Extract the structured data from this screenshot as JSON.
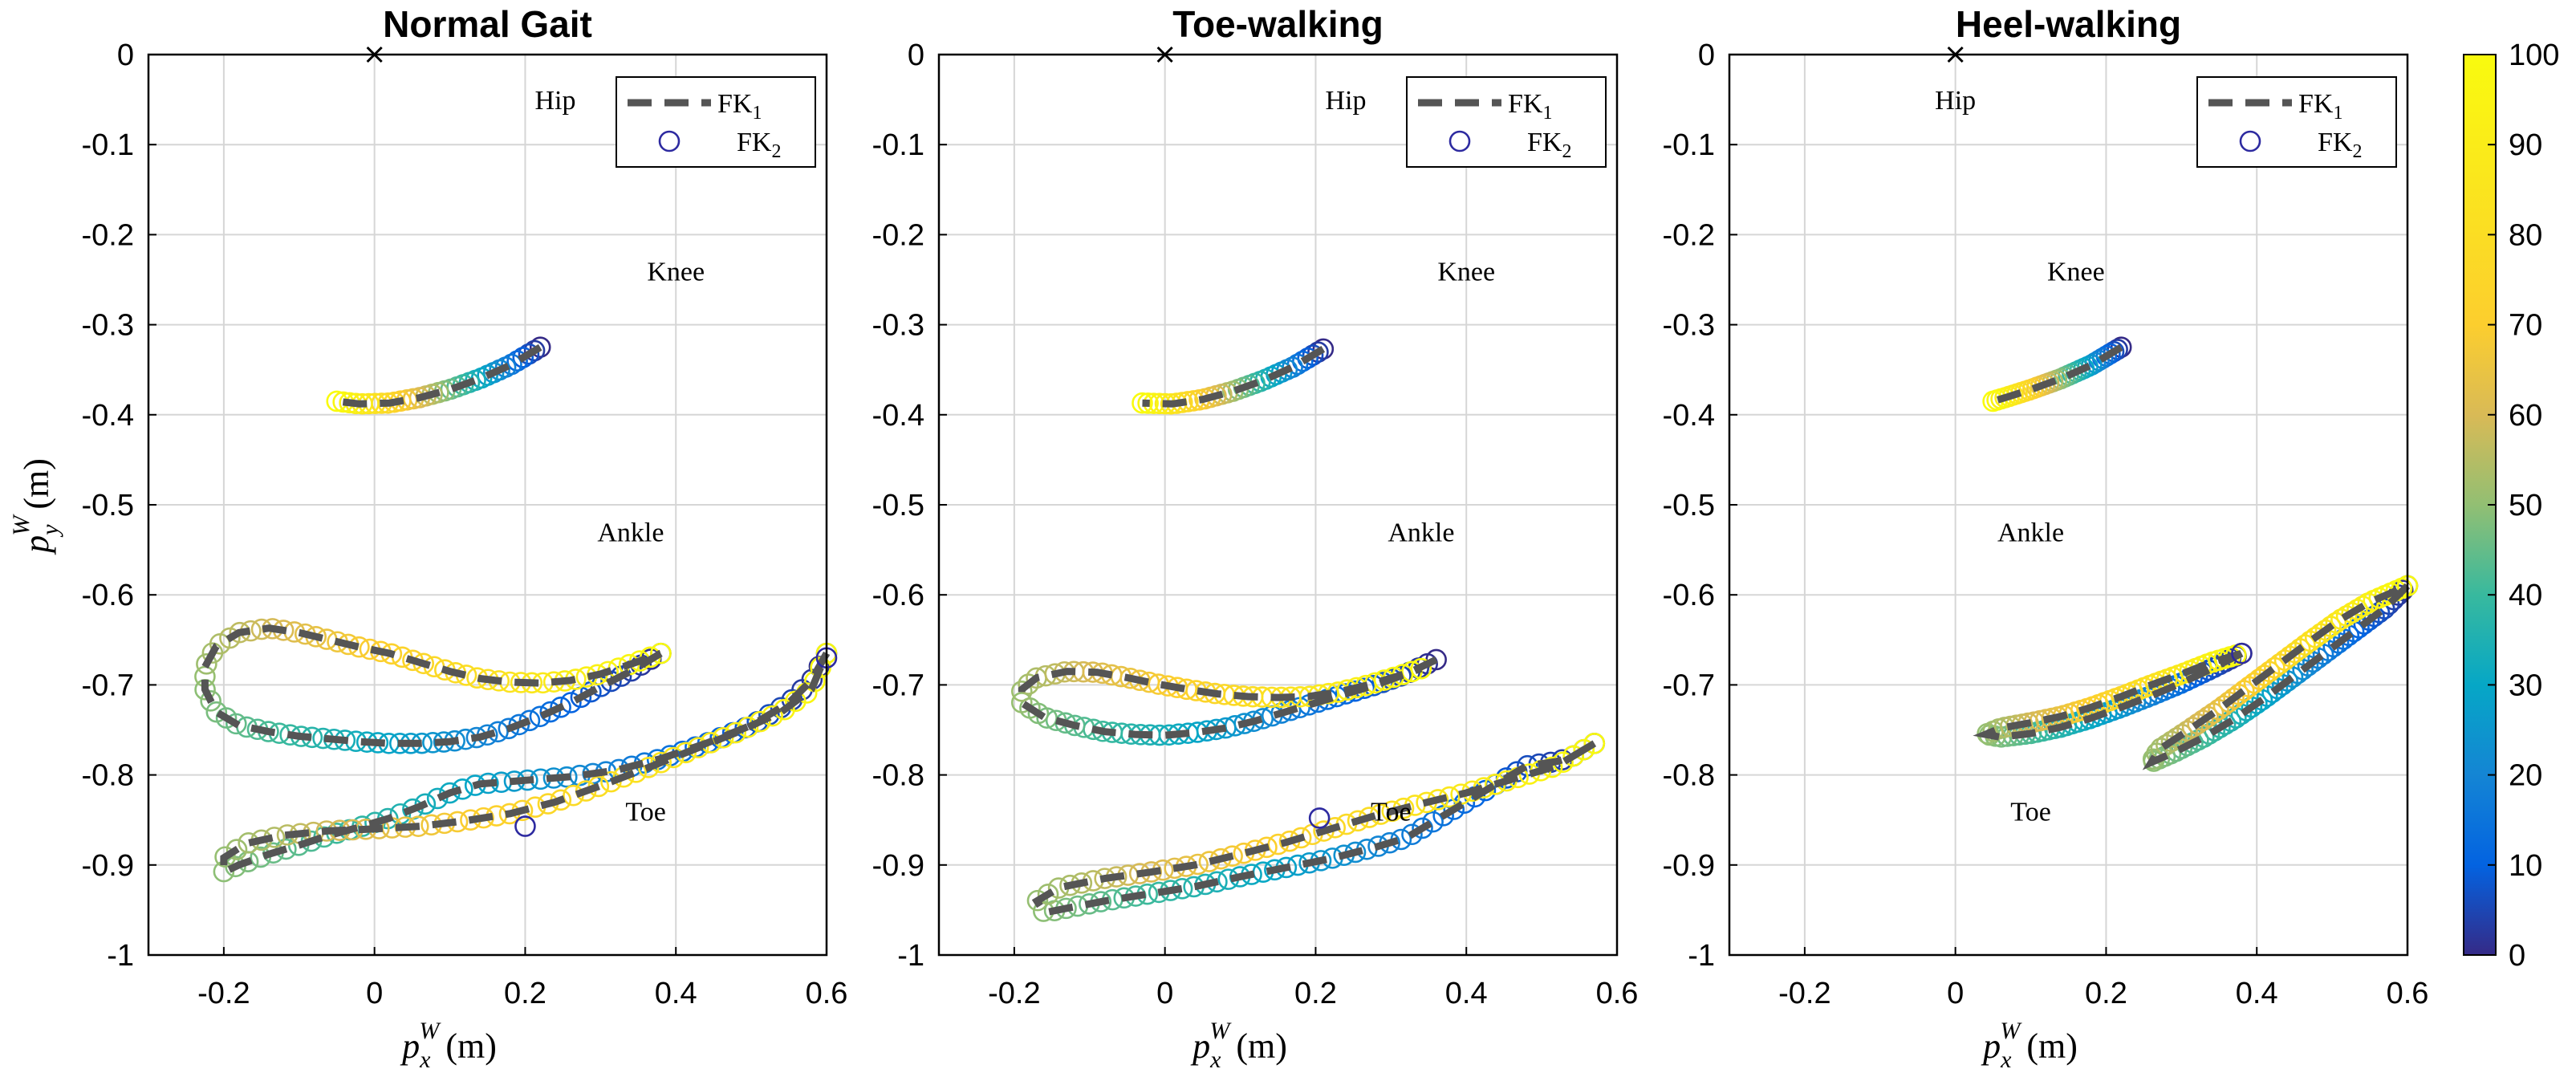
{
  "figure": {
    "xlabel": "p_x^W (m)",
    "xlabel_main": "p",
    "xlabel_sub": "x",
    "xlabel_sup": "W",
    "xlabel_unit": "(m)",
    "ylabel": "p_y^W (m)",
    "ylabel_main": "p",
    "ylabel_sub": "y",
    "ylabel_sup": "W",
    "ylabel_unit": "(m)"
  },
  "legend": {
    "fk1_main": "FK",
    "fk1_sub": "1",
    "fk2_main": "FK",
    "fk2_sub": "2"
  },
  "colorbar": {
    "min": 0,
    "max": 100,
    "ticks": [
      "0",
      "10",
      "20",
      "30",
      "40",
      "50",
      "60",
      "70",
      "80",
      "90",
      "100"
    ],
    "colormap": "parula"
  },
  "chart_data": [
    {
      "type": "line",
      "title": "Normal Gait",
      "xlim": [
        -0.3,
        0.6
      ],
      "ylim": [
        -1,
        0
      ],
      "xticks": [
        "-0.2",
        "0",
        "0.2",
        "0.4",
        "0.6"
      ],
      "yticks": [
        "0",
        "-0.1",
        "-0.2",
        "-0.3",
        "-0.4",
        "-0.5",
        "-0.6",
        "-0.7",
        "-0.8",
        "-0.9",
        "-1"
      ],
      "grid": true,
      "legend_position": "top-right",
      "series": [
        {
          "name": "FK1",
          "style": "dashed",
          "color": "#555555"
        },
        {
          "name": "FK2",
          "style": "circles",
          "color_by": "gait cycle %"
        }
      ],
      "joint_origin": {
        "x": 0,
        "y": 0
      },
      "annotations": [
        {
          "text": "Hip",
          "x": 0.24,
          "y": -0.05
        },
        {
          "text": "Knee",
          "x": 0.4,
          "y": -0.24
        },
        {
          "text": "Ankle",
          "x": 0.34,
          "y": -0.53
        },
        {
          "text": "Toe",
          "x": 0.36,
          "y": -0.84
        }
      ],
      "trajectories": {
        "knee": [
          [
            0.22,
            -0.325
          ],
          [
            0.18,
            -0.345
          ],
          [
            0.14,
            -0.36
          ],
          [
            0.1,
            -0.372
          ],
          [
            0.06,
            -0.381
          ],
          [
            0.02,
            -0.387
          ],
          [
            -0.02,
            -0.388
          ],
          [
            -0.05,
            -0.385
          ]
        ],
        "ankle": [
          [
            0.38,
            -0.665
          ],
          [
            0.34,
            -0.685
          ],
          [
            0.3,
            -0.702
          ],
          [
            0.26,
            -0.72
          ],
          [
            0.22,
            -0.735
          ],
          [
            0.18,
            -0.748
          ],
          [
            0.14,
            -0.758
          ],
          [
            0.1,
            -0.763
          ],
          [
            0.06,
            -0.765
          ],
          [
            0.02,
            -0.765
          ],
          [
            -0.02,
            -0.763
          ],
          [
            -0.06,
            -0.76
          ],
          [
            -0.1,
            -0.757
          ],
          [
            -0.14,
            -0.752
          ],
          [
            -0.18,
            -0.745
          ],
          [
            -0.21,
            -0.73
          ],
          [
            -0.225,
            -0.705
          ],
          [
            -0.225,
            -0.68
          ],
          [
            -0.21,
            -0.657
          ],
          [
            -0.18,
            -0.642
          ],
          [
            -0.14,
            -0.637
          ],
          [
            -0.1,
            -0.642
          ],
          [
            -0.06,
            -0.65
          ],
          [
            -0.02,
            -0.658
          ],
          [
            0.02,
            -0.665
          ],
          [
            0.06,
            -0.675
          ],
          [
            0.1,
            -0.685
          ],
          [
            0.14,
            -0.693
          ],
          [
            0.18,
            -0.697
          ],
          [
            0.22,
            -0.698
          ],
          [
            0.26,
            -0.695
          ],
          [
            0.3,
            -0.688
          ],
          [
            0.34,
            -0.677
          ],
          [
            0.38,
            -0.665
          ]
        ],
        "toe": [
          [
            0.6,
            -0.665
          ],
          [
            0.58,
            -0.695
          ],
          [
            0.55,
            -0.72
          ],
          [
            0.5,
            -0.745
          ],
          [
            0.44,
            -0.765
          ],
          [
            0.38,
            -0.782
          ],
          [
            0.32,
            -0.795
          ],
          [
            0.26,
            -0.802
          ],
          [
            0.2,
            -0.806
          ],
          [
            0.14,
            -0.81
          ],
          [
            0.1,
            -0.82
          ],
          [
            0.06,
            -0.835
          ],
          [
            0.02,
            -0.848
          ],
          [
            -0.02,
            -0.858
          ],
          [
            -0.06,
            -0.867
          ],
          [
            -0.1,
            -0.878
          ],
          [
            -0.14,
            -0.888
          ],
          [
            -0.18,
            -0.9
          ],
          [
            -0.2,
            -0.908
          ],
          [
            -0.2,
            -0.892
          ],
          [
            -0.17,
            -0.876
          ],
          [
            -0.12,
            -0.867
          ],
          [
            -0.06,
            -0.862
          ],
          [
            0,
            -0.86
          ],
          [
            0.06,
            -0.857
          ],
          [
            0.12,
            -0.851
          ],
          [
            0.18,
            -0.843
          ],
          [
            0.24,
            -0.83
          ],
          [
            0.3,
            -0.812
          ],
          [
            0.36,
            -0.793
          ],
          [
            0.42,
            -0.773
          ],
          [
            0.48,
            -0.753
          ],
          [
            0.54,
            -0.73
          ],
          [
            0.58,
            -0.705
          ],
          [
            0.6,
            -0.665
          ]
        ]
      },
      "outliers": [
        [
          0.2,
          -0.857
        ],
        [
          0.6,
          -0.67
        ]
      ]
    },
    {
      "type": "line",
      "title": "Toe-walking",
      "xlim": [
        -0.3,
        0.6
      ],
      "ylim": [
        -1,
        0
      ],
      "xticks": [
        "-0.2",
        "0",
        "0.2",
        "0.4",
        "0.6"
      ],
      "yticks": [
        "0",
        "-0.1",
        "-0.2",
        "-0.3",
        "-0.4",
        "-0.5",
        "-0.6",
        "-0.7",
        "-0.8",
        "-0.9",
        "-1"
      ],
      "grid": true,
      "legend_position": "top-right",
      "series": [
        {
          "name": "FK1",
          "style": "dashed",
          "color": "#555555"
        },
        {
          "name": "FK2",
          "style": "circles",
          "color_by": "gait cycle %"
        }
      ],
      "joint_origin": {
        "x": 0,
        "y": 0
      },
      "annotations": [
        {
          "text": "Hip",
          "x": 0.24,
          "y": -0.05
        },
        {
          "text": "Knee",
          "x": 0.4,
          "y": -0.24
        },
        {
          "text": "Ankle",
          "x": 0.34,
          "y": -0.53
        },
        {
          "text": "Toe",
          "x": 0.3,
          "y": -0.84
        }
      ],
      "trajectories": {
        "knee": [
          [
            0.21,
            -0.327
          ],
          [
            0.17,
            -0.347
          ],
          [
            0.13,
            -0.362
          ],
          [
            0.09,
            -0.374
          ],
          [
            0.05,
            -0.383
          ],
          [
            0.01,
            -0.388
          ],
          [
            -0.03,
            -0.387
          ]
        ],
        "ankle": [
          [
            0.36,
            -0.672
          ],
          [
            0.32,
            -0.688
          ],
          [
            0.28,
            -0.7
          ],
          [
            0.24,
            -0.71
          ],
          [
            0.2,
            -0.72
          ],
          [
            0.16,
            -0.73
          ],
          [
            0.12,
            -0.74
          ],
          [
            0.08,
            -0.748
          ],
          [
            0.04,
            -0.753
          ],
          [
            0,
            -0.756
          ],
          [
            -0.04,
            -0.755
          ],
          [
            -0.08,
            -0.752
          ],
          [
            -0.12,
            -0.745
          ],
          [
            -0.16,
            -0.736
          ],
          [
            -0.19,
            -0.72
          ],
          [
            -0.19,
            -0.705
          ],
          [
            -0.17,
            -0.692
          ],
          [
            -0.13,
            -0.685
          ],
          [
            -0.09,
            -0.686
          ],
          [
            -0.05,
            -0.692
          ],
          [
            -0.01,
            -0.699
          ],
          [
            0.03,
            -0.705
          ],
          [
            0.07,
            -0.71
          ],
          [
            0.11,
            -0.713
          ],
          [
            0.15,
            -0.714
          ],
          [
            0.19,
            -0.713
          ],
          [
            0.23,
            -0.708
          ],
          [
            0.27,
            -0.7
          ],
          [
            0.31,
            -0.69
          ],
          [
            0.34,
            -0.682
          ]
        ],
        "toe": [
          [
            0.57,
            -0.765
          ],
          [
            0.54,
            -0.78
          ],
          [
            0.52,
            -0.785
          ],
          [
            0.48,
            -0.79
          ],
          [
            0.44,
            -0.81
          ],
          [
            0.4,
            -0.83
          ],
          [
            0.36,
            -0.85
          ],
          [
            0.32,
            -0.87
          ],
          [
            0.28,
            -0.88
          ],
          [
            0.22,
            -0.893
          ],
          [
            0.16,
            -0.903
          ],
          [
            0.1,
            -0.913
          ],
          [
            0.04,
            -0.924
          ],
          [
            -0.02,
            -0.932
          ],
          [
            -0.08,
            -0.94
          ],
          [
            -0.13,
            -0.948
          ],
          [
            -0.16,
            -0.953
          ],
          [
            -0.17,
            -0.94
          ],
          [
            -0.14,
            -0.925
          ],
          [
            -0.08,
            -0.915
          ],
          [
            -0.02,
            -0.908
          ],
          [
            0.04,
            -0.9
          ],
          [
            0.1,
            -0.888
          ],
          [
            0.16,
            -0.875
          ],
          [
            0.22,
            -0.86
          ],
          [
            0.28,
            -0.845
          ],
          [
            0.34,
            -0.832
          ],
          [
            0.4,
            -0.82
          ],
          [
            0.46,
            -0.805
          ],
          [
            0.52,
            -0.79
          ],
          [
            0.57,
            -0.765
          ]
        ]
      },
      "outliers": [
        [
          0.205,
          -0.848
        ]
      ]
    },
    {
      "type": "line",
      "title": "Heel-walking",
      "xlim": [
        -0.3,
        0.6
      ],
      "ylim": [
        -1,
        0
      ],
      "xticks": [
        "-0.2",
        "0",
        "0.2",
        "0.4",
        "0.6"
      ],
      "yticks": [
        "0",
        "-0.1",
        "-0.2",
        "-0.3",
        "-0.4",
        "-0.5",
        "-0.6",
        "-0.7",
        "-0.8",
        "-0.9",
        "-1"
      ],
      "grid": true,
      "legend_position": "top-right",
      "series": [
        {
          "name": "FK1",
          "style": "dashed",
          "color": "#555555"
        },
        {
          "name": "FK2",
          "style": "circles",
          "color_by": "gait cycle %"
        }
      ],
      "joint_origin": {
        "x": 0,
        "y": 0
      },
      "annotations": [
        {
          "text": "Hip",
          "x": 0.0,
          "y": -0.05
        },
        {
          "text": "Knee",
          "x": 0.16,
          "y": -0.24
        },
        {
          "text": "Ankle",
          "x": 0.1,
          "y": -0.53
        },
        {
          "text": "Toe",
          "x": 0.1,
          "y": -0.84
        }
      ],
      "trajectories": {
        "knee": [
          [
            0.22,
            -0.325
          ],
          [
            0.18,
            -0.345
          ],
          [
            0.14,
            -0.36
          ],
          [
            0.1,
            -0.372
          ],
          [
            0.07,
            -0.38
          ],
          [
            0.05,
            -0.385
          ]
        ],
        "ankle": [
          [
            0.38,
            -0.665
          ],
          [
            0.34,
            -0.682
          ],
          [
            0.3,
            -0.698
          ],
          [
            0.26,
            -0.712
          ],
          [
            0.22,
            -0.725
          ],
          [
            0.18,
            -0.737
          ],
          [
            0.14,
            -0.747
          ],
          [
            0.1,
            -0.754
          ],
          [
            0.06,
            -0.758
          ],
          [
            0.04,
            -0.755
          ],
          [
            0.06,
            -0.748
          ],
          [
            0.1,
            -0.742
          ],
          [
            0.14,
            -0.735
          ],
          [
            0.18,
            -0.725
          ],
          [
            0.22,
            -0.713
          ],
          [
            0.26,
            -0.7
          ],
          [
            0.3,
            -0.688
          ],
          [
            0.34,
            -0.675
          ],
          [
            0.38,
            -0.665
          ]
        ],
        "toe": [
          [
            0.6,
            -0.59
          ],
          [
            0.57,
            -0.615
          ],
          [
            0.53,
            -0.64
          ],
          [
            0.49,
            -0.665
          ],
          [
            0.45,
            -0.69
          ],
          [
            0.41,
            -0.715
          ],
          [
            0.37,
            -0.738
          ],
          [
            0.33,
            -0.758
          ],
          [
            0.29,
            -0.775
          ],
          [
            0.26,
            -0.786
          ],
          [
            0.27,
            -0.772
          ],
          [
            0.31,
            -0.75
          ],
          [
            0.35,
            -0.727
          ],
          [
            0.39,
            -0.702
          ],
          [
            0.43,
            -0.677
          ],
          [
            0.47,
            -0.652
          ],
          [
            0.51,
            -0.628
          ],
          [
            0.55,
            -0.608
          ],
          [
            0.6,
            -0.59
          ]
        ]
      },
      "outliers": [
        [
          0.38,
          -0.665
        ]
      ]
    }
  ]
}
